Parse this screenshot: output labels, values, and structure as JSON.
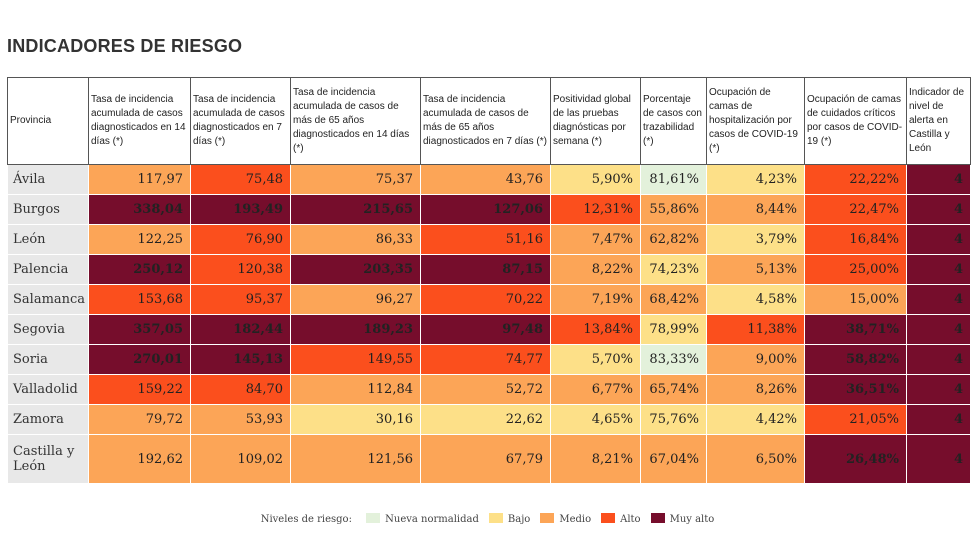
{
  "title": "INDICADORES DE RIESGO",
  "columns": [
    "Provincia",
    "Tasa de incidencia acumulada de casos diagnosticados en 14 días (*)",
    "Tasa de incidencia acumulada de casos diagnosticados en 7 días (*)",
    "Tasa de incidencia acumulada de casos de más de 65 años diagnosticados en 14 días (*)",
    "Tasa de incidencia acumulada de casos de más de 65 años diagnosticados en 7 días (*)",
    "Positividad global de las pruebas diagnósticas por semana (*)",
    "Porcentaje de casos con trazabilidad (*)",
    "Ocupación de camas de hospitalización por casos de COVID-19 (*)",
    "Ocupación de camas de cuidados críticos por casos de COVID-19 (*)",
    "Indicador de nivel de alerta en Castilla y León"
  ],
  "rows": [
    {
      "provincia": "Ávila",
      "values": [
        "117,97",
        "75,48",
        "75,37",
        "43,76",
        "5,90%",
        "81,61%",
        "4,23%",
        "22,22%",
        "4"
      ],
      "levels": [
        "medio",
        "alto",
        "medio",
        "medio",
        "bajo",
        "nueva",
        "bajo",
        "alto",
        "muyalto"
      ]
    },
    {
      "provincia": "Burgos",
      "values": [
        "338,04",
        "193,49",
        "215,65",
        "127,06",
        "12,31%",
        "55,86%",
        "8,44%",
        "22,47%",
        "4"
      ],
      "levels": [
        "muyalto",
        "muyalto",
        "muyalto",
        "muyalto",
        "alto",
        "medio",
        "medio",
        "alto",
        "muyalto"
      ]
    },
    {
      "provincia": "León",
      "values": [
        "122,25",
        "76,90",
        "86,33",
        "51,16",
        "7,47%",
        "62,82%",
        "3,79%",
        "16,84%",
        "4"
      ],
      "levels": [
        "medio",
        "alto",
        "medio",
        "alto",
        "medio",
        "medio",
        "bajo",
        "alto",
        "muyalto"
      ]
    },
    {
      "provincia": "Palencia",
      "values": [
        "250,12",
        "120,38",
        "203,35",
        "87,15",
        "8,22%",
        "74,23%",
        "5,13%",
        "25,00%",
        "4"
      ],
      "levels": [
        "muyalto",
        "alto",
        "muyalto",
        "muyalto",
        "medio",
        "bajo",
        "medio",
        "alto",
        "muyalto"
      ]
    },
    {
      "provincia": "Salamanca",
      "values": [
        "153,68",
        "95,37",
        "96,27",
        "70,22",
        "7,19%",
        "68,42%",
        "4,58%",
        "15,00%",
        "4"
      ],
      "levels": [
        "alto",
        "alto",
        "medio",
        "alto",
        "medio",
        "medio",
        "bajo",
        "medio",
        "muyalto"
      ]
    },
    {
      "provincia": "Segovia",
      "values": [
        "357,05",
        "182,44",
        "189,23",
        "97,48",
        "13,84%",
        "78,99%",
        "11,38%",
        "38,71%",
        "4"
      ],
      "levels": [
        "muyalto",
        "muyalto",
        "muyalto",
        "muyalto",
        "alto",
        "bajo",
        "alto",
        "muyalto",
        "muyalto"
      ]
    },
    {
      "provincia": "Soria",
      "values": [
        "270,01",
        "145,13",
        "149,55",
        "74,77",
        "5,70%",
        "83,33%",
        "9,00%",
        "58,82%",
        "4"
      ],
      "levels": [
        "muyalto",
        "muyalto",
        "alto",
        "alto",
        "bajo",
        "nueva",
        "medio",
        "muyalto",
        "muyalto"
      ]
    },
    {
      "provincia": "Valladolid",
      "values": [
        "159,22",
        "84,70",
        "112,84",
        "52,72",
        "6,77%",
        "65,74%",
        "8,26%",
        "36,51%",
        "4"
      ],
      "levels": [
        "alto",
        "alto",
        "medio",
        "medio",
        "medio",
        "medio",
        "medio",
        "muyalto",
        "muyalto"
      ]
    },
    {
      "provincia": "Zamora",
      "values": [
        "79,72",
        "53,93",
        "30,16",
        "22,62",
        "4,65%",
        "75,76%",
        "4,42%",
        "21,05%",
        "4"
      ],
      "levels": [
        "medio",
        "medio",
        "bajo",
        "bajo",
        "bajo",
        "bajo",
        "bajo",
        "alto",
        "muyalto"
      ]
    },
    {
      "provincia": "Castilla y León",
      "values": [
        "192,62",
        "109,02",
        "121,56",
        "67,79",
        "8,21%",
        "67,04%",
        "6,50%",
        "26,48%",
        "4"
      ],
      "levels": [
        "medio",
        "medio",
        "medio",
        "medio",
        "medio",
        "medio",
        "medio",
        "muyalto",
        "muyalto"
      ]
    }
  ],
  "legend": {
    "title": "Niveles de riesgo:",
    "items": [
      {
        "key": "nueva",
        "label": "Nueva normalidad",
        "color": "#e3f1db"
      },
      {
        "key": "bajo",
        "label": "Bajo",
        "color": "#fde088"
      },
      {
        "key": "medio",
        "label": "Medio",
        "color": "#fca557"
      },
      {
        "key": "alto",
        "label": "Alto",
        "color": "#fb4f1d"
      },
      {
        "key": "muyalto",
        "label": "Muy alto",
        "color": "#760d2c"
      }
    ]
  }
}
